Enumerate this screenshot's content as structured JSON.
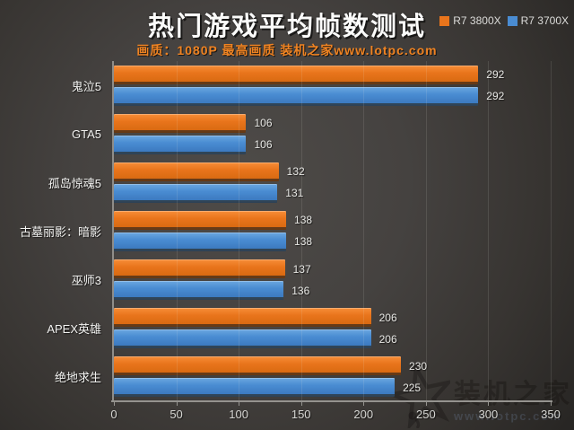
{
  "header": {
    "title": "热门游戏平均帧数测试",
    "subtitle": "画质：1080P 最高画质 装机之家www.lotpc.com",
    "legend": [
      {
        "label": "R7 3800X",
        "color": "#e9751c"
      },
      {
        "label": "R7 3700X",
        "color": "#4a8cd2"
      }
    ]
  },
  "chart_data": {
    "type": "bar",
    "orientation": "horizontal",
    "title": "热门游戏平均帧数测试",
    "subtitle": "画质：1080P 最高画质 装机之家www.lotpc.com",
    "categories": [
      "鬼泣5",
      "GTA5",
      "孤岛惊魂5",
      "古墓丽影：暗影",
      "巫师3",
      "APEX英雄",
      "绝地求生"
    ],
    "series": [
      {
        "name": "R7 3800X",
        "color": "#e9751c",
        "color_light": "#f78e38",
        "color_dark": "#d96a12",
        "values": [
          292,
          106,
          132,
          138,
          137,
          206,
          230
        ]
      },
      {
        "name": "R7 3700X",
        "color": "#4a8cd2",
        "color_light": "#6ba7e0",
        "color_dark": "#3c7ac0",
        "values": [
          292,
          106,
          131,
          138,
          136,
          206,
          225
        ]
      }
    ],
    "xlim": [
      0,
      350
    ],
    "xticks": [
      0,
      50,
      100,
      150,
      200,
      250,
      300,
      350
    ],
    "grid": "vertical",
    "legend_position": "top-right",
    "value_labels": true
  },
  "watermark": {
    "brand": "装机之家",
    "url": "www.lotpc.com"
  }
}
